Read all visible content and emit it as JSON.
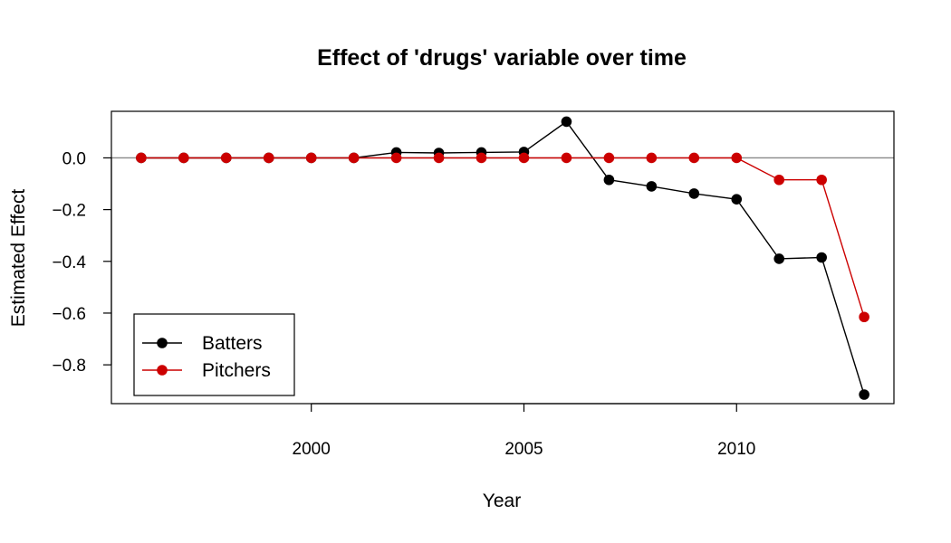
{
  "chart_data": {
    "type": "line",
    "title": "Effect of 'drugs' variable over time",
    "xlabel": "Year",
    "ylabel": "Estimated Effect",
    "x": [
      1996,
      1997,
      1998,
      1999,
      2000,
      2001,
      2002,
      2003,
      2004,
      2005,
      2006,
      2007,
      2008,
      2009,
      2010,
      2011,
      2012,
      2013
    ],
    "xlim": [
      1995.3,
      2013.7
    ],
    "ylim": [
      -0.95,
      0.18
    ],
    "xticks": [
      2000,
      2005,
      2010
    ],
    "yticks": [
      0.0,
      -0.2,
      -0.4,
      -0.6,
      -0.8
    ],
    "ytick_labels": [
      "0.0",
      "−0.2",
      "−0.4",
      "−0.6",
      "−0.8"
    ],
    "reference_line": 0,
    "series": [
      {
        "name": "Batters",
        "color": "#000000",
        "values": [
          0,
          0,
          0,
          0,
          0,
          0,
          0.021,
          0.019,
          0.021,
          0.023,
          0.14,
          -0.085,
          -0.11,
          -0.138,
          -0.16,
          -0.39,
          -0.385,
          -0.915
        ]
      },
      {
        "name": "Pitchers",
        "color": "#cc0000",
        "values": [
          0,
          0,
          0,
          0,
          0,
          0,
          0,
          0,
          0,
          0,
          0,
          0,
          0,
          0,
          0,
          -0.085,
          -0.085,
          -0.615
        ]
      }
    ],
    "reference_line_color": "#888888",
    "legend_position": "bottom-left",
    "grid": false
  }
}
